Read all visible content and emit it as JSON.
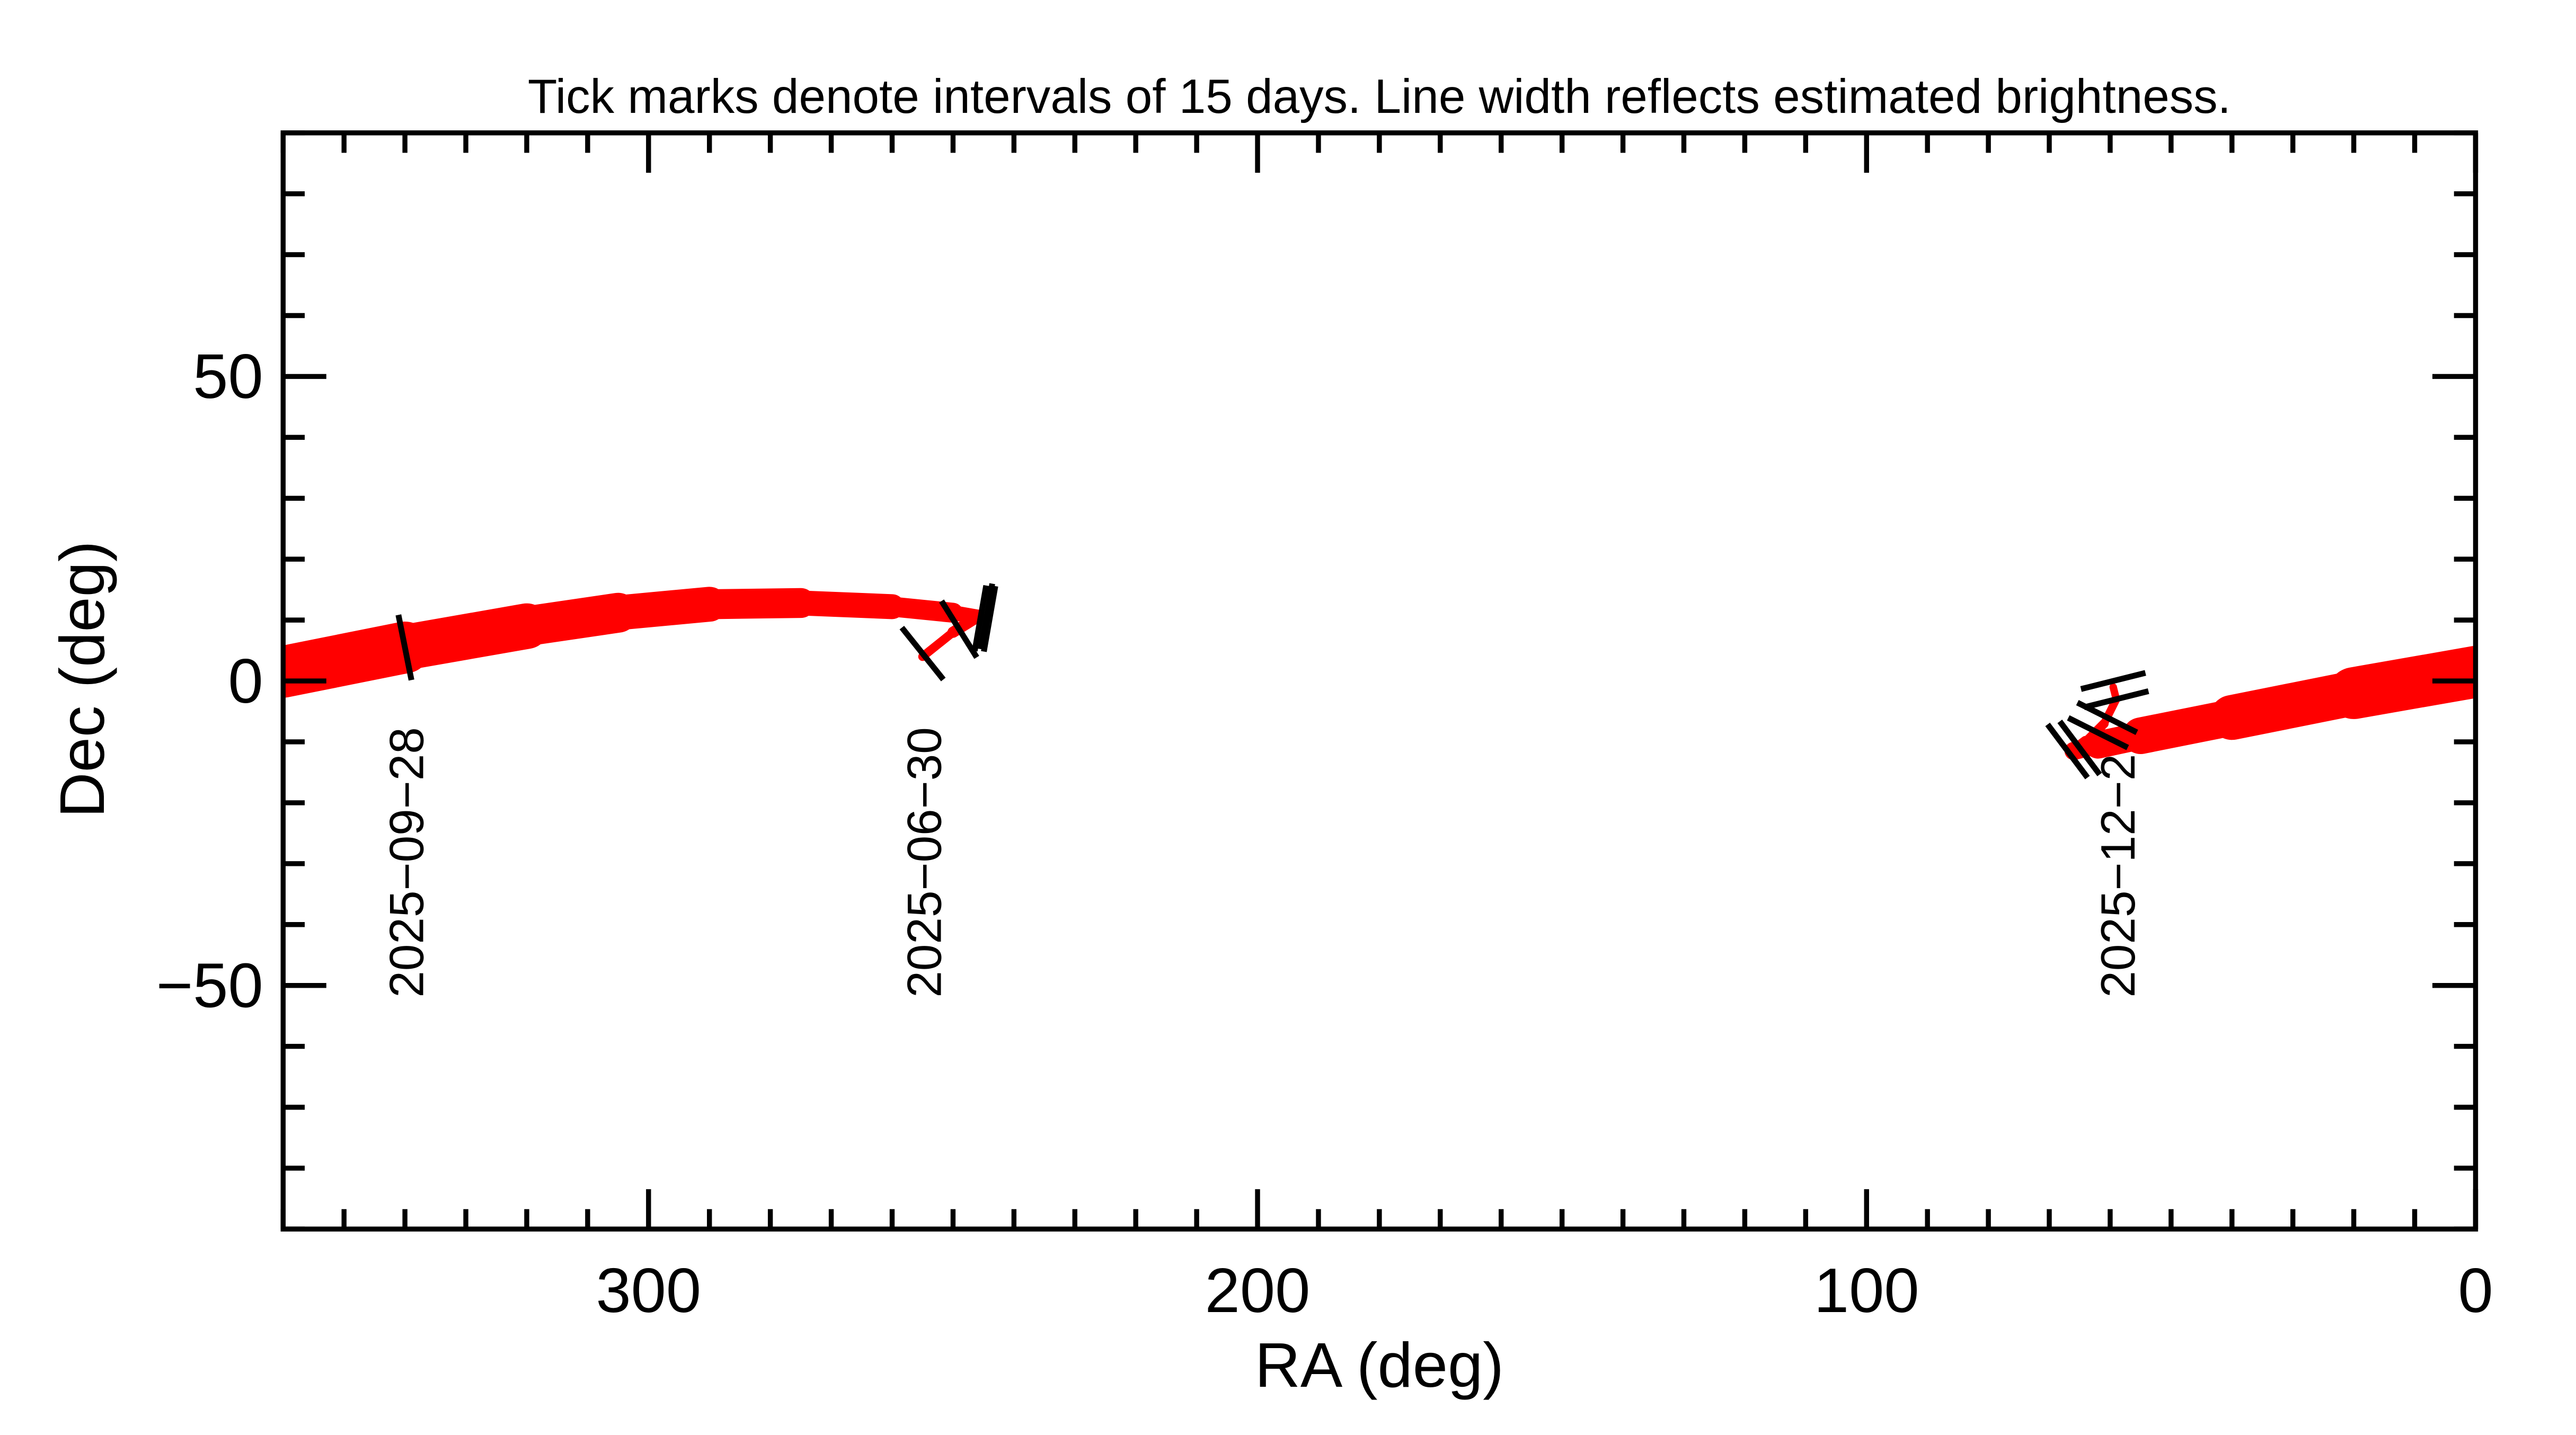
{
  "chart_data": {
    "type": "line",
    "title": "Tick marks denote intervals of 15 days.  Line width reflects estimated brightness.",
    "xlabel": "RA (deg)",
    "ylabel": "Dec (deg)",
    "xlim": [
      360,
      0
    ],
    "ylim": [
      -90,
      90
    ],
    "x_ticks": [
      300,
      200,
      100,
      0
    ],
    "x_tick_labels": [
      "300",
      "200",
      "100",
      "0"
    ],
    "y_ticks": [
      50,
      0,
      -50
    ],
    "y_tick_labels": [
      "50",
      "0",
      "−50"
    ],
    "x_minor_step": 10,
    "y_minor_step": 10,
    "grid": false,
    "line_color": "#ff0000",
    "series": [
      {
        "points_ra_dec_relbrightness": [
          [
            255,
            4,
            0.05
          ],
          [
            250,
            8,
            0.1
          ],
          [
            246,
            10.5,
            0.15
          ],
          [
            250,
            11.2,
            0.25
          ],
          [
            260,
            12.2,
            0.35
          ],
          [
            275,
            12.8,
            0.45
          ],
          [
            290,
            12.6,
            0.55
          ],
          [
            305,
            11.2,
            0.65
          ],
          [
            320,
            9,
            0.75
          ],
          [
            340,
            5.5,
            0.88
          ],
          [
            360,
            1.5,
            1.0
          ]
        ]
      },
      {
        "points_ra_dec_relbrightness": [
          [
            0,
            1.5,
            1.0
          ],
          [
            20,
            -2,
            0.88
          ],
          [
            40,
            -6,
            0.72
          ],
          [
            55,
            -9,
            0.55
          ],
          [
            62,
            -10.5,
            0.35
          ],
          [
            66,
            -11.5,
            0.18
          ],
          [
            64,
            -10,
            0.1
          ],
          [
            61,
            -7,
            0.07
          ],
          [
            59,
            -3,
            0.05
          ],
          [
            59.5,
            -1,
            0.05
          ]
        ]
      }
    ],
    "interval_ticks_ra_dec": [
      [
        255,
        4.5
      ],
      [
        249,
        8.5
      ],
      [
        245.5,
        10.3
      ],
      [
        244.5,
        10.6
      ],
      [
        244,
        10.2
      ],
      [
        340,
        5.5
      ],
      [
        67,
        -11.5
      ],
      [
        65,
        -11
      ],
      [
        62,
        -8.5
      ],
      [
        60.5,
        -6
      ],
      [
        59,
        -3
      ],
      [
        59.5,
        0
      ]
    ],
    "date_labels": [
      {
        "text": "2025−09−28",
        "ra": 340
      },
      {
        "text": "2025−06−30",
        "ra": 255
      },
      {
        "text": "2025−12−2",
        "ra": 59
      }
    ]
  }
}
